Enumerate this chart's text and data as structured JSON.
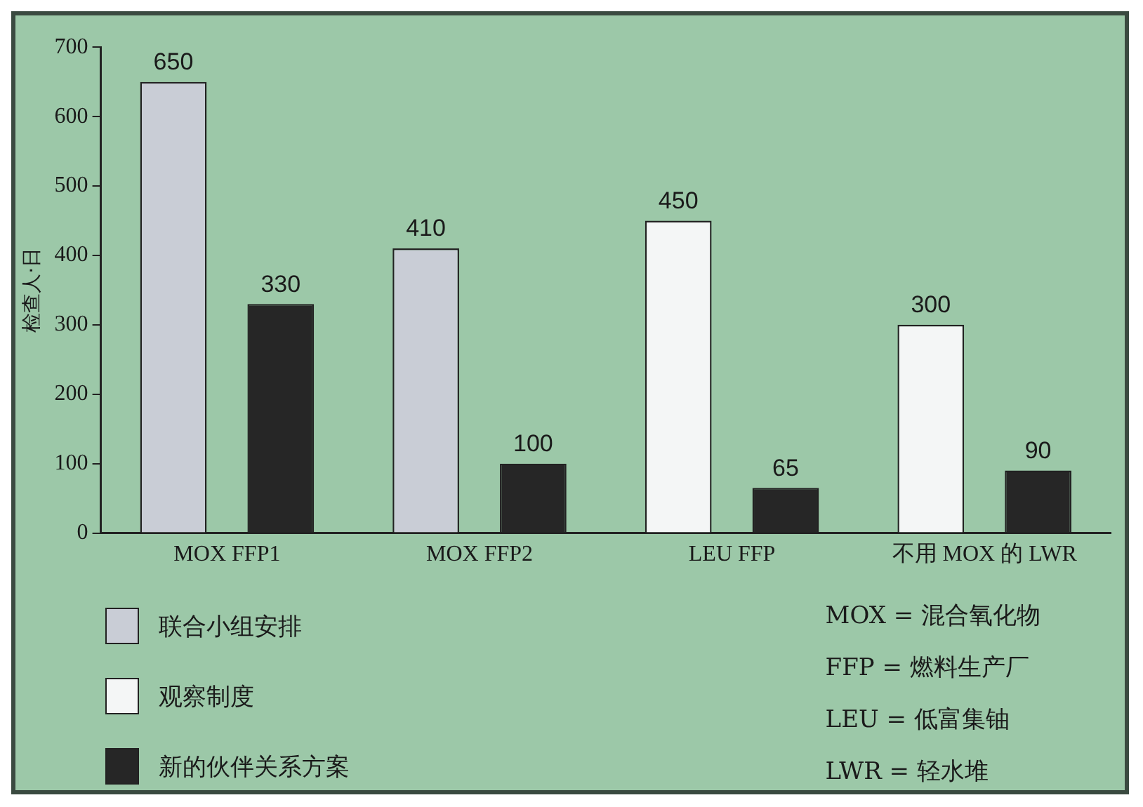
{
  "chart_data": {
    "type": "bar",
    "ylabel": "检查人·日",
    "categories": [
      "MOX FFP1",
      "MOX FFP2",
      "LEU FFP",
      "不用 MOX 的 LWR"
    ],
    "series": [
      {
        "name": "联合小组安排",
        "color": "#c9cdd6",
        "values": [
          650,
          410,
          null,
          null
        ]
      },
      {
        "name": "观察制度",
        "color": "#f4f6f6",
        "values": [
          null,
          null,
          450,
          300
        ]
      },
      {
        "name": "新的伙伴关系方案",
        "color": "#262626",
        "values": [
          330,
          100,
          65,
          90
        ]
      }
    ],
    "ylim": [
      0,
      700
    ],
    "yticks": [
      0,
      100,
      200,
      300,
      400,
      500,
      600,
      700
    ],
    "data_labels": true,
    "legend": "bottom left",
    "annotations": [
      "MOX = 混合氧化物",
      "FFP = 燃料生产厂",
      "LEU = 低富集铀",
      "LWR = 轻水堆"
    ]
  }
}
